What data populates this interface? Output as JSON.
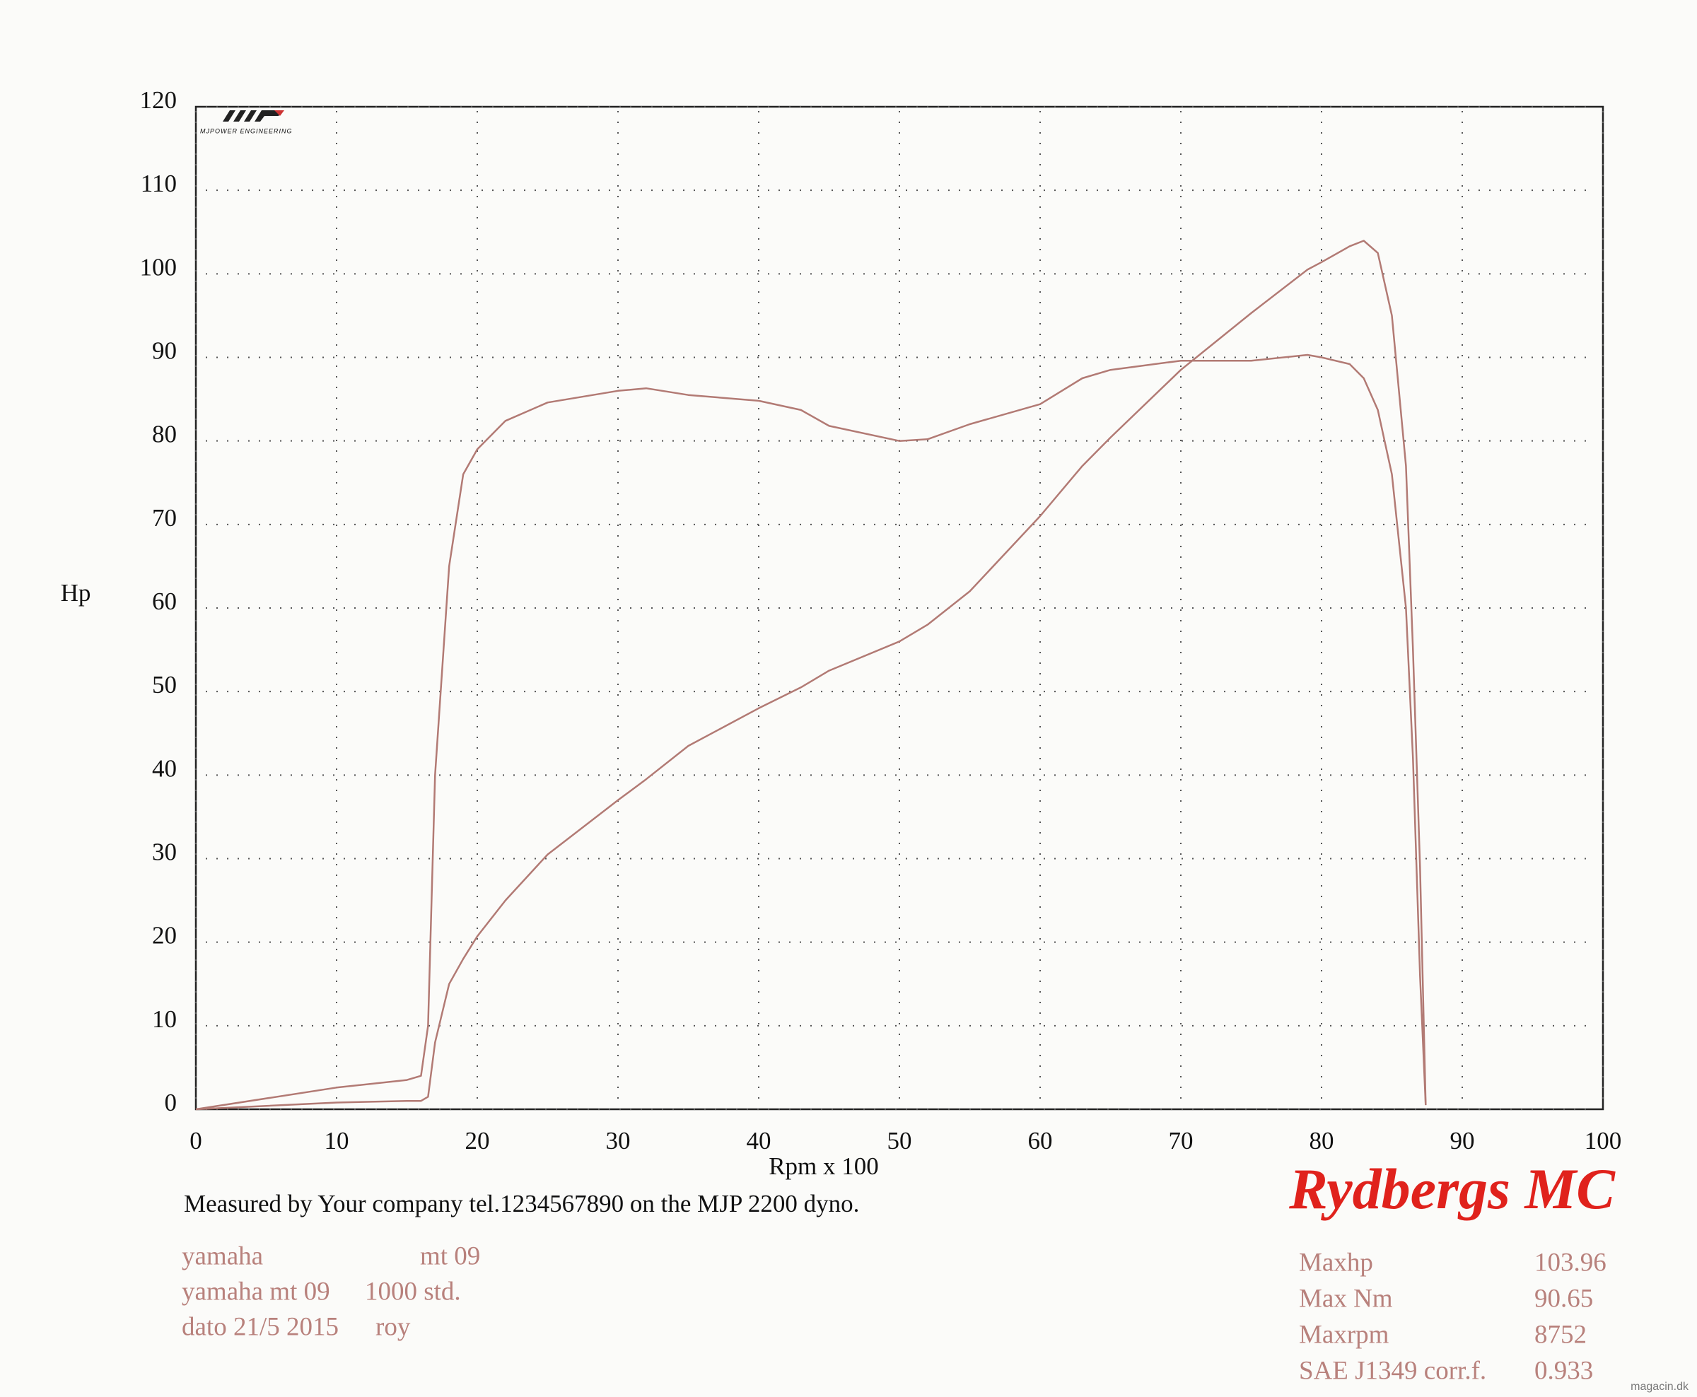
{
  "chart_data": {
    "type": "line",
    "ylabel": "Hp",
    "xlabel": "Rpm x 100",
    "x": [
      0,
      10,
      15,
      16,
      16.5,
      17,
      18,
      19,
      20,
      22,
      25,
      30,
      32,
      35,
      40,
      43,
      45,
      50,
      52,
      55,
      60,
      63,
      65,
      70,
      75,
      79,
      80,
      82,
      83,
      84,
      85,
      86,
      86.5,
      87,
      87.4
    ],
    "series": [
      {
        "color": "#b27a74",
        "values": [
          0,
          0.8,
          1,
          1,
          1.5,
          8,
          15,
          18,
          20.7,
          25,
          30.5,
          37,
          39.5,
          43.5,
          48,
          50.5,
          52.5,
          56,
          58,
          62,
          71,
          77,
          80.4,
          88.5,
          95.3,
          100.5,
          101.4,
          103.3,
          103.96,
          102.5,
          95,
          77,
          55,
          29,
          0.5
        ]
      },
      {
        "color": "#b27a74",
        "values": [
          0,
          2.6,
          3.5,
          4,
          10,
          40,
          65,
          76,
          79,
          82.4,
          84.6,
          86,
          86.3,
          85.5,
          84.8,
          83.7,
          81.8,
          80,
          80.2,
          82,
          84.4,
          87.5,
          88.5,
          89.6,
          89.6,
          90.3,
          90,
          89.2,
          87.5,
          83.7,
          76,
          60,
          42,
          16,
          0.5
        ]
      }
    ],
    "xlim": [
      0,
      100
    ],
    "xticks": [
      0,
      10,
      20,
      30,
      40,
      50,
      60,
      70,
      80,
      90,
      100
    ],
    "ylim": [
      0,
      120
    ],
    "yticks": [
      0,
      10,
      20,
      30,
      40,
      50,
      60,
      70,
      80,
      90,
      100,
      110,
      120
    ],
    "grid": true
  },
  "logo": {
    "name": "MJPOWER ENGINEERING"
  },
  "footer": "Measured by Your company tel.1234567890 on the MJP 2200 dyno.",
  "brand": "Rydbergs MC",
  "vehicle": [
    [
      "yamaha",
      "mt 09"
    ],
    [
      "yamaha mt 09",
      "1000 std."
    ],
    [
      "dato 21/5 2015",
      "roy"
    ]
  ],
  "stats": [
    {
      "label": "Maxhp",
      "value": 103.96
    },
    {
      "label": "Max Nm",
      "value": 90.65
    },
    {
      "label": "Maxrpm",
      "value": 8752
    },
    {
      "label": "SAE J1349 corr.f.",
      "value": 0.933
    }
  ],
  "watermark": "magacin.dk"
}
